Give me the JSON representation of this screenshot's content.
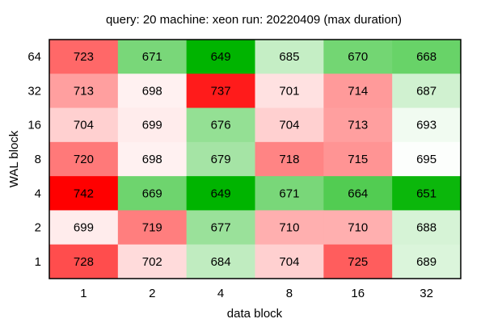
{
  "chart_data": {
    "type": "heatmap",
    "title": "query: 20  machine: xeon  run: 20220409  (max duration)",
    "xlabel": "data block",
    "ylabel": "WAL block",
    "x_categories": [
      "1",
      "2",
      "4",
      "8",
      "16",
      "32"
    ],
    "y_categories": [
      "64",
      "32",
      "16",
      "8",
      "4",
      "2",
      "1"
    ],
    "values": [
      [
        723,
        671,
        649,
        685,
        670,
        668
      ],
      [
        713,
        698,
        737,
        701,
        714,
        687
      ],
      [
        704,
        699,
        676,
        704,
        713,
        693
      ],
      [
        720,
        698,
        679,
        718,
        715,
        695
      ],
      [
        742,
        669,
        649,
        671,
        664,
        651
      ],
      [
        699,
        719,
        677,
        710,
        710,
        688
      ],
      [
        728,
        702,
        684,
        704,
        725,
        689
      ]
    ],
    "colors": {
      "high": "#ff0000",
      "mid": "#ffffff",
      "low": "#00b400"
    },
    "value_range": [
      649,
      742
    ],
    "grid": false,
    "legend": "none"
  }
}
